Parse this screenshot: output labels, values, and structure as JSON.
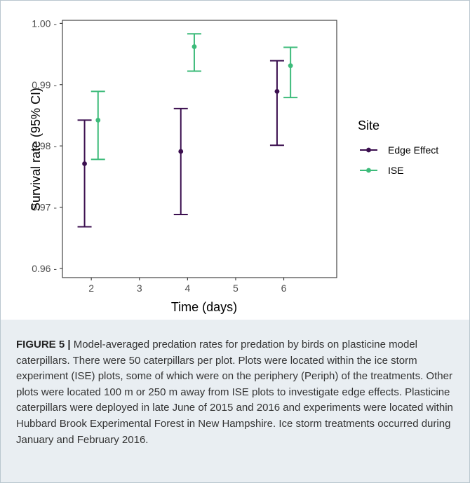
{
  "chart_data": {
    "type": "scatter",
    "xlabel": "Time (days)",
    "ylabel": "Survival rate (95% CI)",
    "xlim": [
      1.4,
      7.1
    ],
    "ylim": [
      0.9585,
      1.0005
    ],
    "xticks": [
      2,
      3,
      4,
      5,
      6
    ],
    "xtick_labels": [
      "2",
      "3",
      "4",
      "5",
      "6"
    ],
    "yticks": [
      0.96,
      0.97,
      0.98,
      0.99,
      1.0
    ],
    "ytick_labels": [
      "0.96 -",
      "0.97 -",
      "0.98 -",
      "0.99 -",
      "1.00 -"
    ],
    "grid": false,
    "legend_title": "Site",
    "legend_position": "right",
    "series": [
      {
        "name": "Edge Effect",
        "color": "#3b0f4f",
        "points": [
          {
            "x": 2,
            "y": 0.9771,
            "lower": 0.9668,
            "upper": 0.9842
          },
          {
            "x": 4,
            "y": 0.9791,
            "lower": 0.9688,
            "upper": 0.9861
          },
          {
            "x": 6,
            "y": 0.9889,
            "lower": 0.9801,
            "upper": 0.9939
          }
        ]
      },
      {
        "name": "ISE",
        "color": "#3dbb7a",
        "points": [
          {
            "x": 2,
            "y": 0.9842,
            "lower": 0.9778,
            "upper": 0.9889
          },
          {
            "x": 4,
            "y": 0.9962,
            "lower": 0.9922,
            "upper": 0.9983
          },
          {
            "x": 6,
            "y": 0.9931,
            "lower": 0.9879,
            "upper": 0.9961
          }
        ]
      }
    ]
  },
  "caption": {
    "label": "FIGURE 5 |",
    "text": " Model-averaged predation rates for predation by birds on plasticine model caterpillars. There were 50 caterpillars per plot. Plots were located within the ice storm experiment (ISE) plots, some of which were on the periphery (Periph) of the treatments. Other plots were located 100 m or 250 m away from ISE plots to investigate edge effects. Plasticine caterpillars were deployed in late June of 2015 and 2016 and experiments were located within Hubbard Brook Experimental Forest in New Hampshire. Ice storm treatments occurred during January and February 2016."
  }
}
